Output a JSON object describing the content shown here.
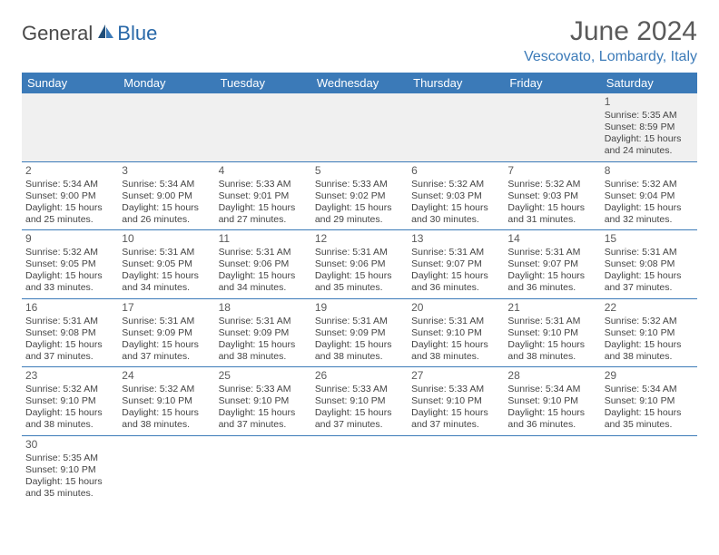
{
  "logo": {
    "general": "General",
    "blue": "Blue"
  },
  "title": "June 2024",
  "location": "Vescovato, Lombardy, Italy",
  "colors": {
    "header_bg": "#3b7ab8",
    "header_text": "#ffffff",
    "location_text": "#3b7ab8",
    "title_text": "#5a5a5a",
    "row_border": "#3b7ab8",
    "first_row_bg": "#f0f0f0",
    "body_text": "#444444"
  },
  "day_headers": [
    "Sunday",
    "Monday",
    "Tuesday",
    "Wednesday",
    "Thursday",
    "Friday",
    "Saturday"
  ],
  "weeks": [
    [
      null,
      null,
      null,
      null,
      null,
      null,
      {
        "n": "1",
        "sr": "5:35 AM",
        "ss": "8:59 PM",
        "dl": "15 hours",
        "dm": "24 minutes."
      }
    ],
    [
      {
        "n": "2",
        "sr": "5:34 AM",
        "ss": "9:00 PM",
        "dl": "15 hours",
        "dm": "25 minutes."
      },
      {
        "n": "3",
        "sr": "5:34 AM",
        "ss": "9:00 PM",
        "dl": "15 hours",
        "dm": "26 minutes."
      },
      {
        "n": "4",
        "sr": "5:33 AM",
        "ss": "9:01 PM",
        "dl": "15 hours",
        "dm": "27 minutes."
      },
      {
        "n": "5",
        "sr": "5:33 AM",
        "ss": "9:02 PM",
        "dl": "15 hours",
        "dm": "29 minutes."
      },
      {
        "n": "6",
        "sr": "5:32 AM",
        "ss": "9:03 PM",
        "dl": "15 hours",
        "dm": "30 minutes."
      },
      {
        "n": "7",
        "sr": "5:32 AM",
        "ss": "9:03 PM",
        "dl": "15 hours",
        "dm": "31 minutes."
      },
      {
        "n": "8",
        "sr": "5:32 AM",
        "ss": "9:04 PM",
        "dl": "15 hours",
        "dm": "32 minutes."
      }
    ],
    [
      {
        "n": "9",
        "sr": "5:32 AM",
        "ss": "9:05 PM",
        "dl": "15 hours",
        "dm": "33 minutes."
      },
      {
        "n": "10",
        "sr": "5:31 AM",
        "ss": "9:05 PM",
        "dl": "15 hours",
        "dm": "34 minutes."
      },
      {
        "n": "11",
        "sr": "5:31 AM",
        "ss": "9:06 PM",
        "dl": "15 hours",
        "dm": "34 minutes."
      },
      {
        "n": "12",
        "sr": "5:31 AM",
        "ss": "9:06 PM",
        "dl": "15 hours",
        "dm": "35 minutes."
      },
      {
        "n": "13",
        "sr": "5:31 AM",
        "ss": "9:07 PM",
        "dl": "15 hours",
        "dm": "36 minutes."
      },
      {
        "n": "14",
        "sr": "5:31 AM",
        "ss": "9:07 PM",
        "dl": "15 hours",
        "dm": "36 minutes."
      },
      {
        "n": "15",
        "sr": "5:31 AM",
        "ss": "9:08 PM",
        "dl": "15 hours",
        "dm": "37 minutes."
      }
    ],
    [
      {
        "n": "16",
        "sr": "5:31 AM",
        "ss": "9:08 PM",
        "dl": "15 hours",
        "dm": "37 minutes."
      },
      {
        "n": "17",
        "sr": "5:31 AM",
        "ss": "9:09 PM",
        "dl": "15 hours",
        "dm": "37 minutes."
      },
      {
        "n": "18",
        "sr": "5:31 AM",
        "ss": "9:09 PM",
        "dl": "15 hours",
        "dm": "38 minutes."
      },
      {
        "n": "19",
        "sr": "5:31 AM",
        "ss": "9:09 PM",
        "dl": "15 hours",
        "dm": "38 minutes."
      },
      {
        "n": "20",
        "sr": "5:31 AM",
        "ss": "9:10 PM",
        "dl": "15 hours",
        "dm": "38 minutes."
      },
      {
        "n": "21",
        "sr": "5:31 AM",
        "ss": "9:10 PM",
        "dl": "15 hours",
        "dm": "38 minutes."
      },
      {
        "n": "22",
        "sr": "5:32 AM",
        "ss": "9:10 PM",
        "dl": "15 hours",
        "dm": "38 minutes."
      }
    ],
    [
      {
        "n": "23",
        "sr": "5:32 AM",
        "ss": "9:10 PM",
        "dl": "15 hours",
        "dm": "38 minutes."
      },
      {
        "n": "24",
        "sr": "5:32 AM",
        "ss": "9:10 PM",
        "dl": "15 hours",
        "dm": "38 minutes."
      },
      {
        "n": "25",
        "sr": "5:33 AM",
        "ss": "9:10 PM",
        "dl": "15 hours",
        "dm": "37 minutes."
      },
      {
        "n": "26",
        "sr": "5:33 AM",
        "ss": "9:10 PM",
        "dl": "15 hours",
        "dm": "37 minutes."
      },
      {
        "n": "27",
        "sr": "5:33 AM",
        "ss": "9:10 PM",
        "dl": "15 hours",
        "dm": "37 minutes."
      },
      {
        "n": "28",
        "sr": "5:34 AM",
        "ss": "9:10 PM",
        "dl": "15 hours",
        "dm": "36 minutes."
      },
      {
        "n": "29",
        "sr": "5:34 AM",
        "ss": "9:10 PM",
        "dl": "15 hours",
        "dm": "35 minutes."
      }
    ],
    [
      {
        "n": "30",
        "sr": "5:35 AM",
        "ss": "9:10 PM",
        "dl": "15 hours",
        "dm": "35 minutes."
      },
      null,
      null,
      null,
      null,
      null,
      null
    ]
  ],
  "labels": {
    "sunrise": "Sunrise: ",
    "sunset": "Sunset: ",
    "daylight": "Daylight: ",
    "and": "and "
  }
}
